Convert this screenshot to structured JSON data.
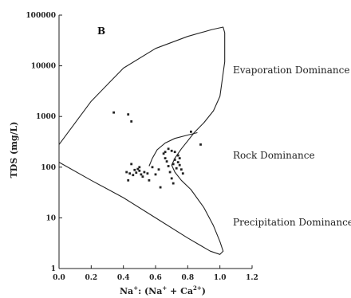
{
  "chart_data": {
    "type": "scatter",
    "panel_label": "B",
    "ylabel": "TDS (mg/L)",
    "xlabel_main": "Na",
    "xlabel_sup1": "+",
    "xlabel_mid": ": (Na",
    "xlabel_sup2": "+",
    "xlabel_plus": " + Ca",
    "xlabel_sup3": "2+",
    "xlabel_end": ")",
    "xlim": [
      0,
      1.2
    ],
    "ylim": [
      1,
      100000
    ],
    "y_scale": "log",
    "x_ticks": [
      "0.0",
      "0.2",
      "0.4",
      "0.6",
      "0.8",
      "1.0",
      "1.2"
    ],
    "y_ticks": [
      "1",
      "10",
      "100",
      "1000",
      "10000",
      "100000"
    ],
    "annotations": [
      "Evaporation Dominance",
      "Rock Dominance",
      "Precipitation Dominance"
    ],
    "points": [
      [
        0.34,
        1200
      ],
      [
        0.43,
        1100
      ],
      [
        0.45,
        800
      ],
      [
        0.82,
        500
      ],
      [
        0.88,
        280
      ],
      [
        0.42,
        80
      ],
      [
        0.44,
        75
      ],
      [
        0.43,
        55
      ],
      [
        0.46,
        70
      ],
      [
        0.47,
        88
      ],
      [
        0.48,
        78
      ],
      [
        0.49,
        92
      ],
      [
        0.5,
        85
      ],
      [
        0.51,
        72
      ],
      [
        0.52,
        65
      ],
      [
        0.53,
        80
      ],
      [
        0.55,
        75
      ],
      [
        0.56,
        55
      ],
      [
        0.45,
        115
      ],
      [
        0.5,
        100
      ],
      [
        0.58,
        100
      ],
      [
        0.6,
        72
      ],
      [
        0.62,
        90
      ],
      [
        0.63,
        40
      ],
      [
        0.65,
        185
      ],
      [
        0.66,
        150
      ],
      [
        0.67,
        130
      ],
      [
        0.68,
        105
      ],
      [
        0.69,
        80
      ],
      [
        0.7,
        60
      ],
      [
        0.71,
        48
      ],
      [
        0.72,
        200
      ],
      [
        0.73,
        95
      ],
      [
        0.74,
        170
      ],
      [
        0.75,
        110
      ],
      [
        0.76,
        90
      ],
      [
        0.77,
        75
      ],
      [
        0.68,
        230
      ],
      [
        0.7,
        210
      ],
      [
        0.72,
        140
      ],
      [
        0.74,
        125
      ],
      [
        0.66,
        200
      ],
      [
        0.71,
        115
      ],
      [
        0.75,
        150
      ]
    ]
  }
}
